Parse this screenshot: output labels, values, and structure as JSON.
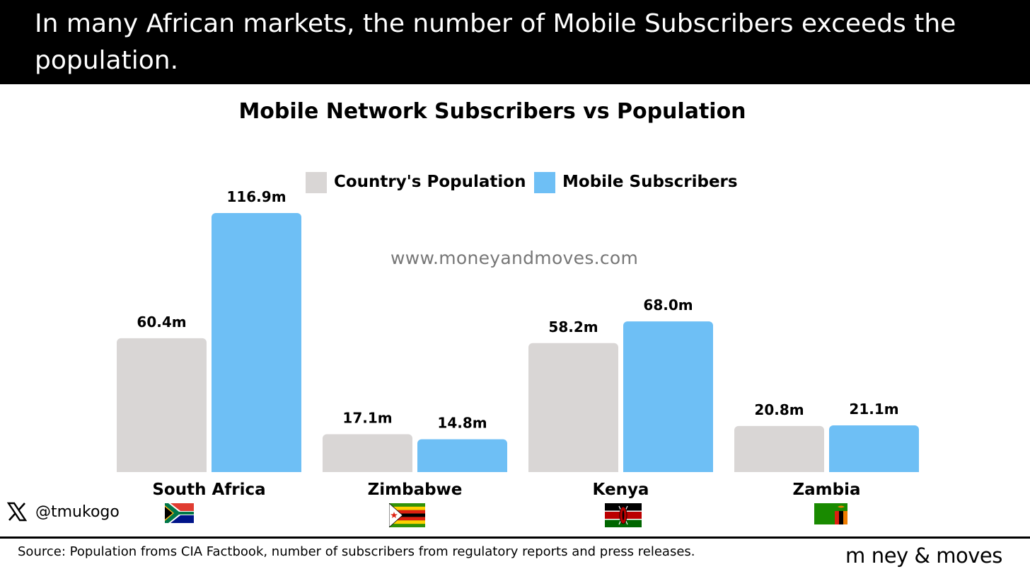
{
  "header": {
    "headline": "In many African markets, the number of Mobile Subscribers exceeds the population."
  },
  "watermark": "www.moneyandmoves.com",
  "chart_data": {
    "type": "bar",
    "title": "Mobile Network Subscribers vs Population",
    "xlabel": "",
    "ylabel": "",
    "ylim": [
      0,
      120
    ],
    "grid": false,
    "legend_position": "top-center",
    "categories": [
      "South Africa",
      "Zimbabwe",
      "Kenya",
      "Zambia"
    ],
    "series": [
      {
        "name": "Country's Population",
        "color": "#d9d6d5",
        "values": [
          60.4,
          17.1,
          58.2,
          20.8
        ],
        "labels": [
          "60.4m",
          "17.1m",
          "58.2m",
          "20.8m"
        ]
      },
      {
        "name": "Mobile Subscribers",
        "color": "#6ebff5",
        "values": [
          116.9,
          14.8,
          68.0,
          21.1
        ],
        "labels": [
          "116.9m",
          "14.8m",
          "68.0m",
          "21.1m"
        ]
      }
    ]
  },
  "flags": [
    "south-africa-flag-icon",
    "zimbabwe-flag-icon",
    "kenya-flag-icon",
    "zambia-flag-icon"
  ],
  "social": {
    "icon": "x-logo-icon",
    "handle": "@tmukogo"
  },
  "footer": {
    "source": "Source:   Population froms CIA Factbook, number of subscribers from regulatory reports and press releases.",
    "brand": "m ney & moves"
  }
}
